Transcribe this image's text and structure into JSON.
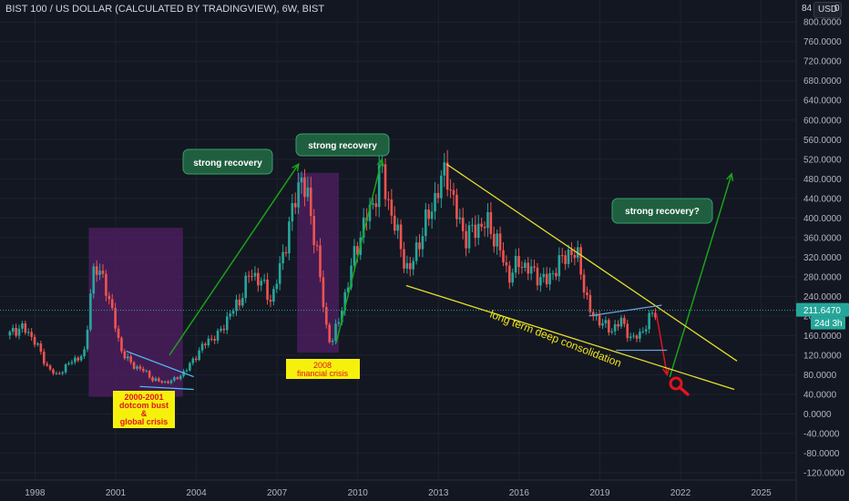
{
  "header": {
    "title": "BIST 100 / US DOLLAR (CALCULATED BY TRADINGVIEW), 6W, BIST",
    "currency": "USD",
    "scale_top_value": "84",
    "scale_corner_value": "0"
  },
  "colors": {
    "background": "#131722",
    "grid": "#1e2230",
    "up": "#26a69a",
    "down": "#ef5350",
    "axis_text": "#b2b5be",
    "price_line": "#26a69a",
    "crisis_zone": "#4a1d5c",
    "recovery_arrow": "#1aa318",
    "channel_line": "#e4e02a",
    "consolidation_label": "#f1e51a",
    "crisis_label_bg": "#f5f10c",
    "crisis_label_text": "#e3141d",
    "callout_bg": "#1f5f3f",
    "callout_border": "#35a06a",
    "drop_arrow": "#e3141d",
    "magnifier": "#e3141d"
  },
  "chart_data": {
    "type": "candlestick",
    "title": "BIST 100 / US DOLLAR (CALCULATED BY TRADINGVIEW), 6W, BIST",
    "x_ticks": [
      "1998",
      "2001",
      "2004",
      "2007",
      "2010",
      "2013",
      "2016",
      "2019",
      "2022",
      "2025"
    ],
    "y_ticks": [
      "800.0000",
      "760.0000",
      "720.0000",
      "680.0000",
      "640.0000",
      "600.0000",
      "560.0000",
      "520.0000",
      "480.0000",
      "440.0000",
      "400.0000",
      "360.0000",
      "320.0000",
      "280.0000",
      "240.0000",
      "200.0000",
      "160.0000",
      "120.0000",
      "80.0000",
      "40.0000",
      "0.0000",
      "-40.0000",
      "-80.0000",
      "-120.0000"
    ],
    "ylim": [
      -135,
      845
    ],
    "xlim": [
      1996.7,
      2026.3
    ],
    "last_price_label": "211.6470",
    "countdown_label": "24d 3h",
    "series": [
      {
        "name": "BIST 100 / US DOLLAR",
        "points": [
          [
            1996.95,
            160
          ],
          [
            1997.5,
            178
          ],
          [
            1998.0,
            150
          ],
          [
            1998.4,
            100
          ],
          [
            1998.8,
            78
          ],
          [
            1999.3,
            105
          ],
          [
            1999.9,
            125
          ],
          [
            2000.0,
            230
          ],
          [
            2000.2,
            300
          ],
          [
            2000.6,
            270
          ],
          [
            2000.9,
            200
          ],
          [
            2001.2,
            130
          ],
          [
            2001.6,
            100
          ],
          [
            2002.0,
            90
          ],
          [
            2002.4,
            70
          ],
          [
            2002.8,
            64
          ],
          [
            2003.2,
            70
          ],
          [
            2003.6,
            88
          ],
          [
            2004.0,
            120
          ],
          [
            2004.4,
            150
          ],
          [
            2004.8,
            160
          ],
          [
            2005.2,
            200
          ],
          [
            2005.6,
            230
          ],
          [
            2006.0,
            290
          ],
          [
            2006.4,
            270
          ],
          [
            2006.8,
            230
          ],
          [
            2007.2,
            320
          ],
          [
            2007.6,
            420
          ],
          [
            2007.9,
            490
          ],
          [
            2008.2,
            420
          ],
          [
            2008.5,
            330
          ],
          [
            2008.8,
            180
          ],
          [
            2009.0,
            145
          ],
          [
            2009.3,
            190
          ],
          [
            2009.6,
            260
          ],
          [
            2009.9,
            330
          ],
          [
            2010.3,
            400
          ],
          [
            2010.6,
            430
          ],
          [
            2010.85,
            505
          ],
          [
            2011.1,
            440
          ],
          [
            2011.4,
            380
          ],
          [
            2011.7,
            320
          ],
          [
            2011.9,
            285
          ],
          [
            2012.2,
            340
          ],
          [
            2012.6,
            400
          ],
          [
            2013.0,
            460
          ],
          [
            2013.3,
            500
          ],
          [
            2013.6,
            420
          ],
          [
            2014.0,
            360
          ],
          [
            2014.4,
            380
          ],
          [
            2014.8,
            390
          ],
          [
            2015.2,
            350
          ],
          [
            2015.6,
            280
          ],
          [
            2016.0,
            310
          ],
          [
            2016.5,
            290
          ],
          [
            2017.0,
            270
          ],
          [
            2017.4,
            300
          ],
          [
            2017.8,
            330
          ],
          [
            2018.2,
            320
          ],
          [
            2018.6,
            210
          ],
          [
            2019.0,
            190
          ],
          [
            2019.4,
            170
          ],
          [
            2019.8,
            190
          ],
          [
            2020.2,
            150
          ],
          [
            2020.6,
            170
          ],
          [
            2020.9,
            200
          ],
          [
            2021.1,
            211.647
          ]
        ]
      }
    ],
    "annotations": [
      {
        "kind": "zone",
        "label": "2000-2001 dotcom bust & global crisis",
        "x": [
          2000.0,
          2003.5
        ],
        "y": [
          35,
          380
        ]
      },
      {
        "kind": "zone",
        "label": "2008 financial crisis",
        "x": [
          2007.75,
          2009.3
        ],
        "y": [
          125,
          492
        ]
      },
      {
        "kind": "arrow",
        "label": "strong recovery",
        "from": [
          2003.0,
          120
        ],
        "to": [
          2007.8,
          510
        ]
      },
      {
        "kind": "arrow",
        "label": "strong recovery",
        "from": [
          2009.2,
          145
        ],
        "to": [
          2010.9,
          520
        ]
      },
      {
        "kind": "arrow",
        "label": "strong recovery?",
        "from": [
          2021.6,
          75
        ],
        "to": [
          2023.9,
          490
        ]
      },
      {
        "kind": "arrow",
        "label": "",
        "from": [
          2021.1,
          205
        ],
        "to": [
          2021.5,
          80
        ]
      },
      {
        "kind": "trendline",
        "label": "",
        "from": [
          2013.3,
          510
        ],
        "to": [
          2024.1,
          108
        ]
      },
      {
        "kind": "trendline",
        "label": "long term deep consolidation",
        "from": [
          2011.8,
          262
        ],
        "to": [
          2024.0,
          50
        ]
      }
    ]
  },
  "labels": {
    "recovery_1": "strong recovery",
    "recovery_2": "strong recovery",
    "recovery_3": "strong recovery?",
    "crisis_2000_line1": "2000-2001",
    "crisis_2000_line2": "dotcom bust",
    "crisis_2000_line3": "&",
    "crisis_2000_line4": "global crisis",
    "crisis_2008_line1": "2008",
    "crisis_2008_line2": "financial crisis",
    "consolidation": "long term deep consolidation"
  },
  "icons": {
    "magnifier": "magnifier-icon"
  }
}
